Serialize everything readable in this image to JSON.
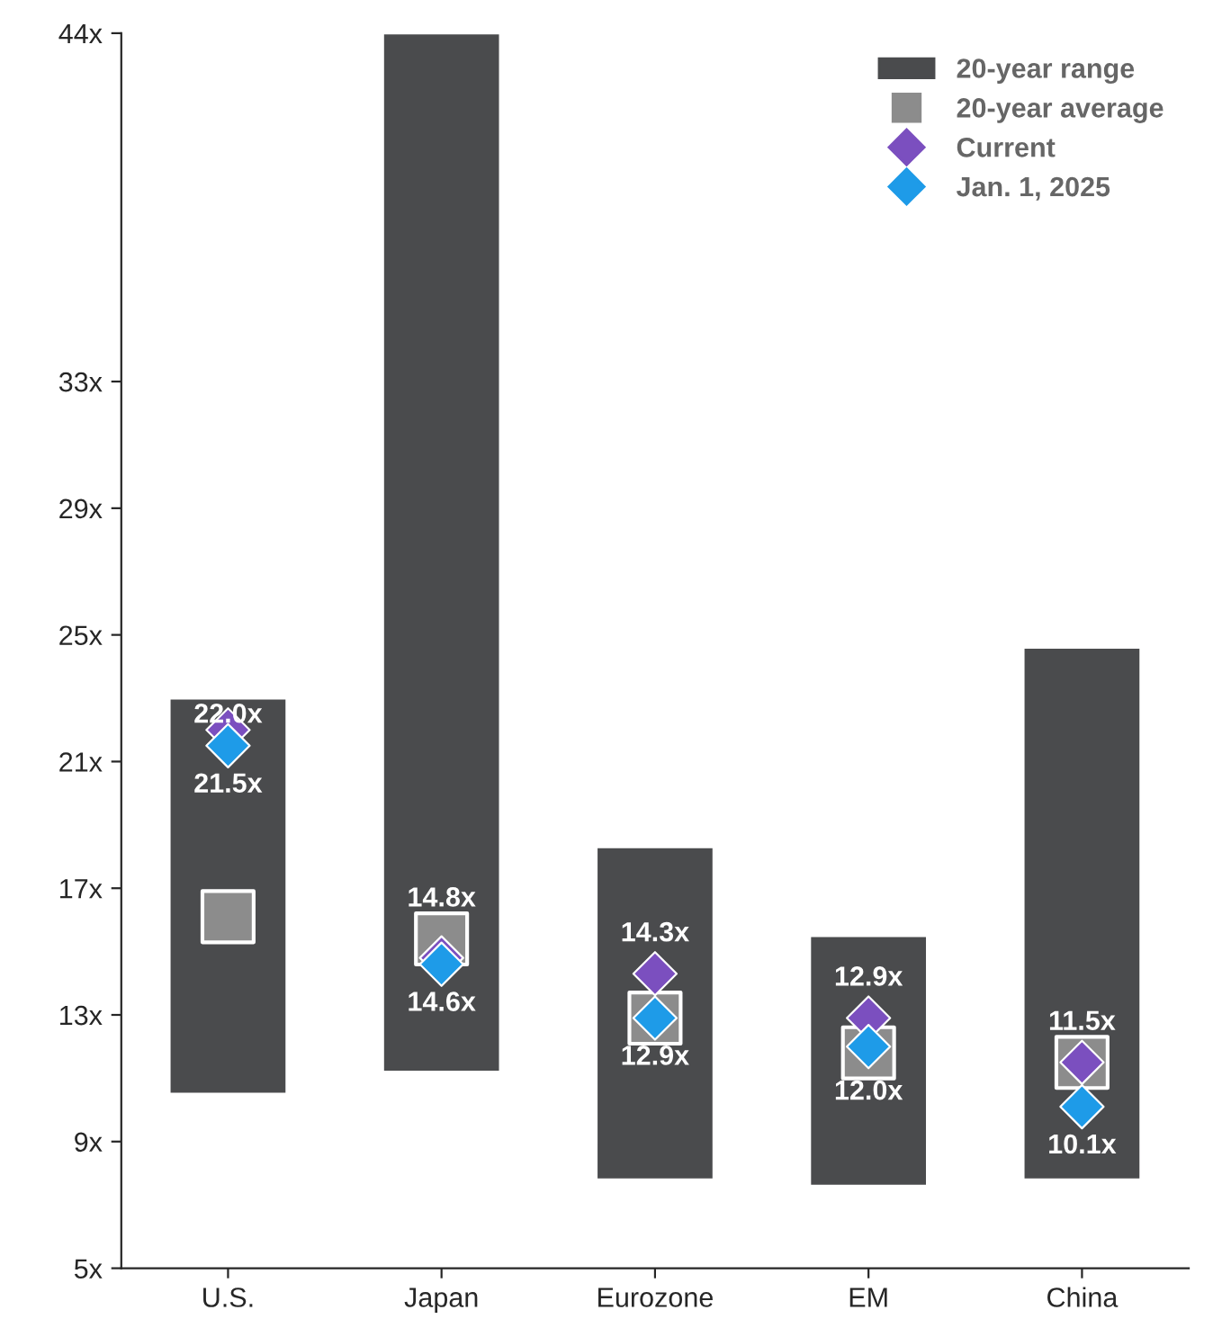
{
  "chart_data": {
    "type": "bar",
    "categories": [
      "U.S.",
      "Japan",
      "Eurozone",
      "EM",
      "China"
    ],
    "ylim": [
      5,
      44
    ],
    "yticks": [
      {
        "value": 5,
        "label": "5x"
      },
      {
        "value": 9,
        "label": "9x"
      },
      {
        "value": 13,
        "label": "13x"
      },
      {
        "value": 17,
        "label": "17x"
      },
      {
        "value": 21,
        "label": "21x"
      },
      {
        "value": 25,
        "label": "25x"
      },
      {
        "value": 29,
        "label": "29x"
      },
      {
        "value": 33,
        "label": "33x"
      },
      {
        "value": 44,
        "label": "44x"
      }
    ],
    "legend": "top right",
    "grid": false,
    "series": [
      {
        "name": "20-year range",
        "color": "#4a4b4d",
        "base": [
          10.5,
          11.2,
          7.8,
          7.6,
          7.8
        ],
        "values": [
          12.5,
          32.8,
          10.5,
          7.9,
          16.8
        ]
      },
      {
        "name": "20-year average",
        "type": "scatter",
        "marker": "square",
        "color": "#8c8c8c",
        "values": [
          16.1,
          15.4,
          12.9,
          11.8,
          11.5
        ]
      },
      {
        "name": "Current",
        "type": "scatter",
        "marker": "diamond",
        "color": "#7b4fbf",
        "values": [
          22.0,
          14.8,
          14.3,
          12.9,
          11.5
        ],
        "value_labels": [
          "22.0x",
          "14.8x",
          "14.3x",
          "12.9x",
          "11.5x"
        ]
      },
      {
        "name": "Jan. 1, 2025",
        "type": "scatter",
        "marker": "diamond",
        "color": "#1e9be8",
        "values": [
          21.5,
          14.6,
          12.9,
          12.0,
          10.1
        ],
        "value_labels": [
          "21.5x",
          "14.6x",
          "12.9x",
          "12.0x",
          "10.1x"
        ]
      }
    ]
  }
}
